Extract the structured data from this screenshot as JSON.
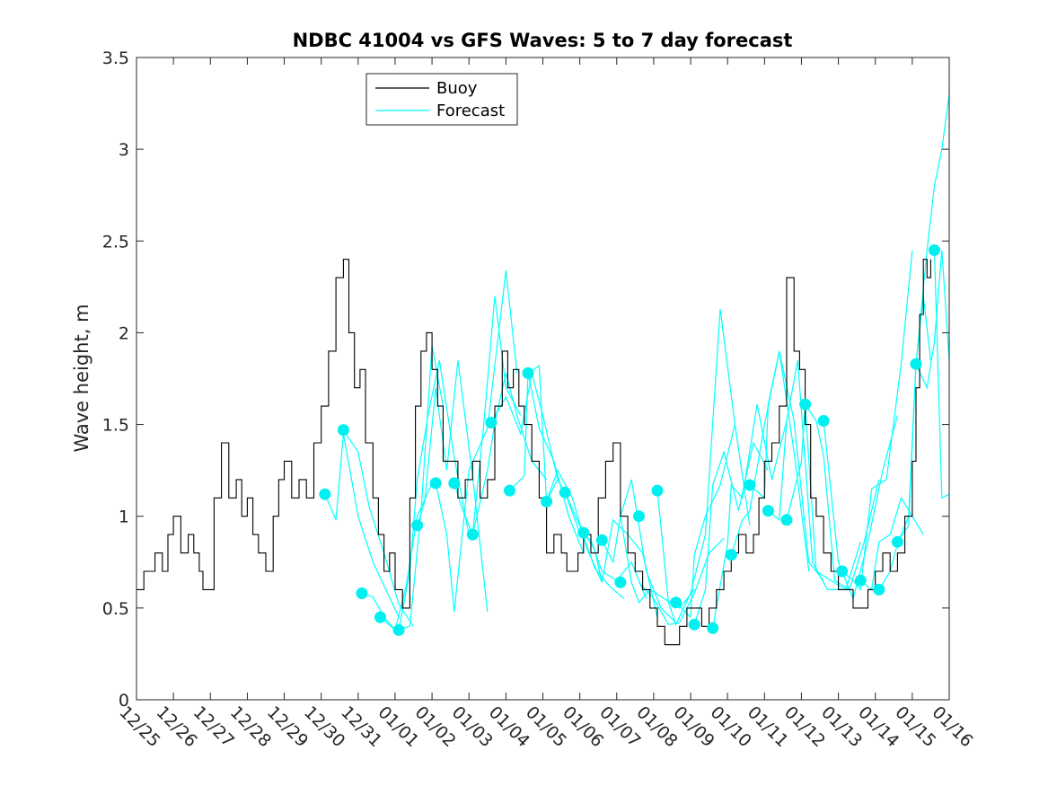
{
  "chart_data": {
    "type": "line",
    "title": "NDBC 41004 vs GFS Waves: 5 to 7 day forecast",
    "xlabel": "",
    "ylabel": "Wave height, m",
    "xlim": [
      0,
      22
    ],
    "ylim": [
      0,
      3.5
    ],
    "yticks": [
      "0",
      "0.5",
      "1",
      "1.5",
      "2",
      "2.5",
      "3",
      "3.5"
    ],
    "ytick_values": [
      0,
      0.5,
      1,
      1.5,
      2,
      2.5,
      3,
      3.5
    ],
    "xtick_labels": [
      "12/25",
      "12/26",
      "12/27",
      "12/28",
      "12/29",
      "12/30",
      "12/31",
      "01/01",
      "01/02",
      "01/03",
      "01/04",
      "01/05",
      "01/06",
      "01/07",
      "01/08",
      "01/09",
      "01/10",
      "01/11",
      "01/12",
      "01/13",
      "01/14",
      "01/15",
      "01/16"
    ],
    "legend": {
      "position": "top-center",
      "entries": [
        "Buoy",
        "Forecast"
      ]
    },
    "colors": {
      "buoy": "#000000",
      "forecast": "#00ffff",
      "marker": "#00f0f0"
    },
    "buoy": {
      "name": "Buoy",
      "x": [
        0,
        0.2,
        0.35,
        0.5,
        0.7,
        0.85,
        1.0,
        1.2,
        1.4,
        1.55,
        1.7,
        1.8,
        2.0,
        2.1,
        2.3,
        2.5,
        2.7,
        2.85,
        3.0,
        3.15,
        3.3,
        3.5,
        3.7,
        3.85,
        4.0,
        4.2,
        4.4,
        4.6,
        4.8,
        5.0,
        5.2,
        5.4,
        5.6,
        5.75,
        5.9,
        6.05,
        6.2,
        6.4,
        6.55,
        6.7,
        6.85,
        7.0,
        7.2,
        7.4,
        7.55,
        7.7,
        7.85,
        8.0,
        8.15,
        8.3,
        8.5,
        8.7,
        8.9,
        9.1,
        9.3,
        9.5,
        9.7,
        9.9,
        10.05,
        10.2,
        10.35,
        10.5,
        10.7,
        10.9,
        11.1,
        11.3,
        11.5,
        11.65,
        11.8,
        11.95,
        12.1,
        12.3,
        12.5,
        12.7,
        12.9,
        13.1,
        13.3,
        13.5,
        13.7,
        13.9,
        14.1,
        14.3,
        14.5,
        14.7,
        14.9,
        15.1,
        15.3,
        15.5,
        15.7,
        15.9,
        16.1,
        16.3,
        16.5,
        16.7,
        16.85,
        17.0,
        17.2,
        17.4,
        17.6,
        17.8,
        17.95,
        18.1,
        18.25,
        18.4,
        18.6,
        18.8,
        19.0,
        19.2,
        19.4,
        19.6,
        19.8,
        20.0,
        20.2,
        20.4,
        20.6,
        20.8,
        21.0,
        21.1,
        21.2,
        21.3,
        21.4,
        21.5
      ],
      "values": [
        0.6,
        0.7,
        0.7,
        0.8,
        0.7,
        0.9,
        1.0,
        0.8,
        0.9,
        0.8,
        0.7,
        0.6,
        0.6,
        1.1,
        1.4,
        1.1,
        1.2,
        1.0,
        1.1,
        0.9,
        0.8,
        0.7,
        1.0,
        1.2,
        1.3,
        1.1,
        1.2,
        1.1,
        1.4,
        1.6,
        1.9,
        2.3,
        2.4,
        2.0,
        1.7,
        1.8,
        1.4,
        1.1,
        0.9,
        0.7,
        0.8,
        0.6,
        0.5,
        1.1,
        1.6,
        1.9,
        2.0,
        1.8,
        1.6,
        1.3,
        1.3,
        1.1,
        1.2,
        1.3,
        1.1,
        1.2,
        1.6,
        1.9,
        1.7,
        1.8,
        1.6,
        1.5,
        1.3,
        1.1,
        0.8,
        0.9,
        0.8,
        0.7,
        0.7,
        0.8,
        0.9,
        0.8,
        1.1,
        1.3,
        1.4,
        1.0,
        0.8,
        0.7,
        0.6,
        0.5,
        0.4,
        0.3,
        0.3,
        0.4,
        0.5,
        0.5,
        0.4,
        0.5,
        0.6,
        0.7,
        0.8,
        0.9,
        0.8,
        0.9,
        1.1,
        1.3,
        1.4,
        1.6,
        2.3,
        1.9,
        1.8,
        1.5,
        1.1,
        1.0,
        0.8,
        0.7,
        0.6,
        0.6,
        0.5,
        0.5,
        0.6,
        0.7,
        0.8,
        0.7,
        0.8,
        1.0,
        1.3,
        1.7,
        2.1,
        2.4,
        2.3,
        2.4
      ]
    },
    "forecasts": [
      {
        "x": [
          5.1,
          5.4,
          5.6,
          6.0,
          6.4,
          6.8,
          7.1
        ],
        "values": [
          1.12,
          0.98,
          1.45,
          1.0,
          0.75,
          0.58,
          0.45
        ]
      },
      {
        "x": [
          5.6,
          6.0,
          6.3,
          6.7,
          7.1,
          7.5
        ],
        "values": [
          1.47,
          1.35,
          1.05,
          0.8,
          0.52,
          0.4
        ]
      },
      {
        "x": [
          6.1,
          6.4,
          6.7,
          7.0,
          7.3,
          7.6,
          8.0
        ],
        "values": [
          0.58,
          0.56,
          0.45,
          0.38,
          0.62,
          1.0,
          1.18
        ]
      },
      {
        "x": [
          6.6,
          7.0,
          7.4,
          7.7,
          8.0,
          8.3
        ],
        "values": [
          0.45,
          0.38,
          0.4,
          1.02,
          1.93,
          1.6
        ]
      },
      {
        "x": [
          7.1,
          7.4,
          7.6,
          7.9,
          8.2,
          8.6,
          9.0
        ],
        "values": [
          0.38,
          0.7,
          1.2,
          1.56,
          1.85,
          1.32,
          0.9
        ]
      },
      {
        "x": [
          7.6,
          7.8,
          8.1,
          8.4,
          8.7,
          9.1,
          9.5
        ],
        "values": [
          0.95,
          1.08,
          1.7,
          1.25,
          1.85,
          1.22,
          0.48
        ]
      },
      {
        "x": [
          8.1,
          8.4,
          8.6,
          9.0,
          9.5,
          10.0,
          10.3
        ],
        "values": [
          1.18,
          0.9,
          0.48,
          1.25,
          1.48,
          2.34,
          1.78
        ]
      },
      {
        "x": [
          8.6,
          8.8,
          9.1,
          9.4,
          9.7,
          10.0,
          10.4
        ],
        "values": [
          1.18,
          1.05,
          0.9,
          1.5,
          2.2,
          1.7,
          1.55
        ]
      },
      {
        "x": [
          9.1,
          9.5,
          9.7,
          10.0,
          10.3,
          10.7,
          11.1
        ],
        "values": [
          0.9,
          1.25,
          1.51,
          1.78,
          1.55,
          1.3,
          1.2
        ]
      },
      {
        "x": [
          9.6,
          10.0,
          10.4,
          10.7,
          11.0,
          11.4
        ],
        "values": [
          1.51,
          1.65,
          1.45,
          1.78,
          1.55,
          1.2
        ]
      },
      {
        "x": [
          10.1,
          10.5,
          10.6,
          10.9,
          11.3,
          11.7,
          12.1
        ],
        "values": [
          1.14,
          1.22,
          1.78,
          1.48,
          1.3,
          1.0,
          0.8
        ]
      },
      {
        "x": [
          10.6,
          10.9,
          11.1,
          11.4,
          11.8,
          12.2,
          12.6
        ],
        "values": [
          1.78,
          1.82,
          1.08,
          1.25,
          1.1,
          0.82,
          0.64
        ]
      },
      {
        "x": [
          11.1,
          11.4,
          11.6,
          12.0,
          12.4,
          12.8,
          13.2
        ],
        "values": [
          1.08,
          1.2,
          1.13,
          0.95,
          0.72,
          0.62,
          0.55
        ]
      },
      {
        "x": [
          11.6,
          12.0,
          12.3,
          12.6,
          13.0,
          13.4,
          13.8
        ],
        "values": [
          1.13,
          0.91,
          0.87,
          0.7,
          0.65,
          0.75,
          0.55
        ]
      },
      {
        "x": [
          12.1,
          12.4,
          12.6,
          12.9,
          13.3,
          13.7,
          14.1
        ],
        "values": [
          0.91,
          0.82,
          0.64,
          0.98,
          0.9,
          0.8,
          0.45
        ]
      },
      {
        "x": [
          12.6,
          12.9,
          13.1,
          13.4,
          13.8,
          14.2,
          14.6
        ],
        "values": [
          0.87,
          0.75,
          1.0,
          1.2,
          0.7,
          0.5,
          0.42
        ]
      },
      {
        "x": [
          13.1,
          13.4,
          13.6,
          13.9,
          14.3,
          14.7,
          15.1
        ],
        "values": [
          1.0,
          0.64,
          0.53,
          0.6,
          0.55,
          0.5,
          0.6
        ]
      },
      {
        "x": [
          13.6,
          14.0,
          14.4,
          14.7,
          15.1,
          15.5,
          15.9
        ],
        "values": [
          0.64,
          0.55,
          0.41,
          0.42,
          0.58,
          0.8,
          0.88
        ]
      },
      {
        "x": [
          14.1,
          14.4,
          14.6,
          15.0,
          15.4,
          15.8,
          16.2
        ],
        "values": [
          1.14,
          0.53,
          0.41,
          0.58,
          0.9,
          2.13,
          1.5
        ]
      },
      {
        "x": [
          14.6,
          15.0,
          15.1,
          15.4,
          15.8,
          16.2,
          16.6
        ],
        "values": [
          0.53,
          0.45,
          0.79,
          1.0,
          1.17,
          1.5,
          0.95
        ]
      },
      {
        "x": [
          15.1,
          15.4,
          15.6,
          15.9,
          16.3,
          16.7,
          17.1
        ],
        "values": [
          0.41,
          0.6,
          1.17,
          1.35,
          1.03,
          1.4,
          1.25
        ]
      },
      {
        "x": [
          15.6,
          16.0,
          16.1,
          16.4,
          16.8,
          17.2,
          17.6
        ],
        "values": [
          0.39,
          0.85,
          1.17,
          1.1,
          1.61,
          1.2,
          1.52
        ]
      },
      {
        "x": [
          16.1,
          16.4,
          16.6,
          17.0,
          17.4,
          17.8,
          18.2
        ],
        "values": [
          0.79,
          0.98,
          1.03,
          1.5,
          1.9,
          1.35,
          0.7
        ]
      },
      {
        "x": [
          16.6,
          17.0,
          17.1,
          17.4,
          17.8,
          18.2,
          18.6
        ],
        "values": [
          1.17,
          1.1,
          1.61,
          1.9,
          1.52,
          0.75,
          0.65
        ]
      },
      {
        "x": [
          17.1,
          17.4,
          17.6,
          17.9,
          18.3,
          18.7,
          19.1
        ],
        "values": [
          1.03,
          0.98,
          1.52,
          1.85,
          0.75,
          0.6,
          0.6
        ]
      },
      {
        "x": [
          17.6,
          18.0,
          18.1,
          18.4,
          18.8,
          19.2,
          19.6
        ],
        "values": [
          0.98,
          1.3,
          1.61,
          0.7,
          0.65,
          0.6,
          0.86
        ]
      },
      {
        "x": [
          18.1,
          18.4,
          18.6,
          18.9,
          19.3,
          19.7,
          20.1
        ],
        "values": [
          1.61,
          1.52,
          1.33,
          0.65,
          0.6,
          0.86,
          1.2
        ]
      },
      {
        "x": [
          18.6,
          19.0,
          19.1,
          19.4,
          19.8,
          20.2,
          20.6
        ],
        "values": [
          1.52,
          0.75,
          0.7,
          0.55,
          0.86,
          1.25,
          1.55
        ]
      },
      {
        "x": [
          19.1,
          19.4,
          19.6,
          19.9,
          20.3,
          20.7,
          21.0
        ],
        "values": [
          0.7,
          0.65,
          0.6,
          1.15,
          1.2,
          1.83,
          2.45
        ]
      },
      {
        "x": [
          19.6,
          19.9,
          20.1,
          20.4,
          20.7,
          21.0,
          21.3
        ],
        "values": [
          0.65,
          0.6,
          0.86,
          0.9,
          1.1,
          1.0,
          0.9
        ]
      },
      {
        "x": [
          20.1,
          20.4,
          20.6,
          20.9,
          21.1,
          21.3,
          21.5
        ],
        "values": [
          0.6,
          0.7,
          0.85,
          1.0,
          1.83,
          2.2,
          1.85
        ]
      },
      {
        "x": [
          20.6,
          20.9,
          21.1,
          21.4,
          21.6,
          21.8,
          22.0
        ],
        "values": [
          0.86,
          0.95,
          1.83,
          2.45,
          2.8,
          3.0,
          3.3
        ]
      },
      {
        "x": [
          21.1,
          21.4,
          21.6,
          21.8,
          22.0
        ],
        "values": [
          1.83,
          1.7,
          1.95,
          2.45,
          1.85
        ]
      },
      {
        "x": [
          21.6,
          21.8,
          22.0
        ],
        "values": [
          2.45,
          1.1,
          1.12
        ]
      }
    ],
    "markers": {
      "x": [
        5.1,
        5.6,
        6.1,
        6.6,
        7.1,
        7.6,
        8.1,
        8.6,
        9.1,
        9.6,
        10.1,
        10.6,
        11.1,
        11.6,
        12.1,
        12.6,
        13.1,
        13.6,
        14.1,
        14.6,
        15.1,
        15.6,
        16.1,
        16.6,
        17.1,
        17.6,
        18.1,
        18.6,
        19.1,
        19.6,
        20.1,
        20.6,
        21.1,
        21.6
      ],
      "values": [
        1.12,
        1.47,
        0.58,
        0.45,
        0.38,
        0.95,
        1.18,
        1.18,
        0.9,
        1.51,
        1.14,
        1.78,
        1.08,
        1.13,
        0.91,
        0.87,
        0.64,
        1.0,
        1.14,
        0.53,
        0.41,
        0.39,
        0.79,
        1.17,
        1.03,
        0.98,
        1.61,
        1.52,
        0.7,
        0.65,
        0.6,
        0.86,
        1.83,
        2.45
      ]
    }
  }
}
